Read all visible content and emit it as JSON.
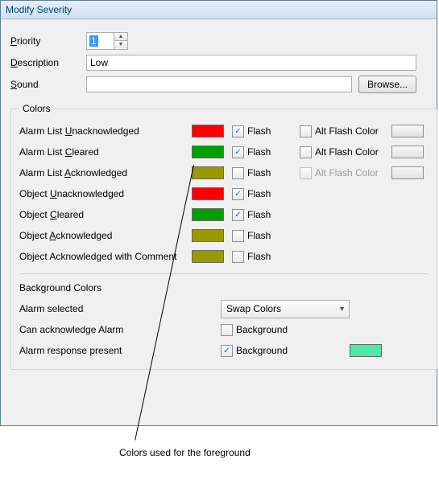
{
  "window": {
    "title": "Modify Severity"
  },
  "form": {
    "priority_label": "Priority",
    "priority_value": "1",
    "description_label": "Description",
    "description_value": "Low",
    "sound_label": "Sound",
    "sound_value": "",
    "browse_label": "Browse..."
  },
  "colors_group": {
    "legend": "Colors",
    "flash_label": "Flash",
    "alt_flash_label": "Alt Flash Color",
    "rows": [
      {
        "pre": "Alarm List ",
        "ul": "U",
        "post": "nacknowledged",
        "swatch": "#ff0000",
        "flash": true,
        "alt": false,
        "alt_enabled": true,
        "end_swatch": true
      },
      {
        "pre": "Alarm List ",
        "ul": "C",
        "post": "leared",
        "swatch": "#00a000",
        "flash": true,
        "alt": false,
        "alt_enabled": true,
        "end_swatch": true
      },
      {
        "pre": "Alarm List ",
        "ul": "A",
        "post": "cknowledged",
        "swatch": "#9a9a00",
        "flash": false,
        "alt": false,
        "alt_enabled": false,
        "end_swatch": true
      },
      {
        "pre": "Object ",
        "ul": "U",
        "post": "nacknowledged",
        "swatch": "#ff0000",
        "flash": true,
        "alt": false,
        "alt_enabled": true,
        "end_swatch": false
      },
      {
        "pre": "Object ",
        "ul": "C",
        "post": "leared",
        "swatch": "#00a000",
        "flash": true,
        "alt": false,
        "alt_enabled": true,
        "end_swatch": false
      },
      {
        "pre": "Object ",
        "ul": "A",
        "post": "cknowledged",
        "swatch": "#9a9a00",
        "flash": false,
        "alt": false,
        "alt_enabled": true,
        "end_swatch": false
      },
      {
        "pre": "Object Acknowledged with Comment",
        "ul": "",
        "post": "",
        "swatch": "#9a9a00",
        "flash": false,
        "alt": false,
        "alt_enabled": true,
        "end_swatch": false
      }
    ]
  },
  "bg_group": {
    "legend": "Background Colors",
    "alarm_selected_label": "Alarm selected",
    "combo_value": "Swap Colors",
    "can_ack_label": "Can acknowledge Alarm",
    "can_ack_check_label": "Background",
    "can_ack_checked": false,
    "resp_label": "Alarm response present",
    "resp_check_label": "Background",
    "resp_checked": true,
    "resp_swatch": "#4ee9a8"
  },
  "callout": {
    "text": "Colors used for the foreground"
  }
}
